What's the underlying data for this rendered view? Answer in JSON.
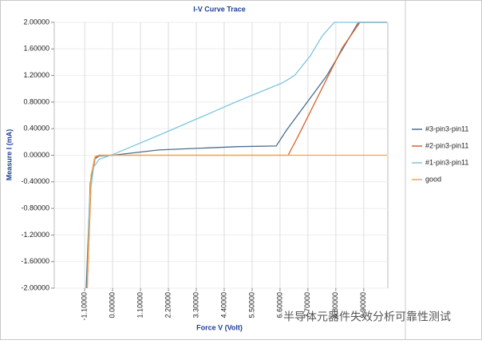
{
  "chart_data": {
    "type": "line",
    "title": "I-V Curve Trace",
    "x_label": "Force V (Volt)",
    "y_label": "Measure I (mA)",
    "xlim": [
      -2.3,
      10.85
    ],
    "ylim": [
      -2,
      2
    ],
    "xticks": [
      {
        "value": -1.1,
        "label": "-1.10000"
      },
      {
        "value": 0,
        "label": "0.00000"
      },
      {
        "value": 1.1,
        "label": "1.10000"
      },
      {
        "value": 2.2,
        "label": "2.20000"
      },
      {
        "value": 3.3,
        "label": "3.30000"
      },
      {
        "value": 4.4,
        "label": "4.40000"
      },
      {
        "value": 5.5,
        "label": "5.50000"
      },
      {
        "value": 6.6,
        "label": "6.60000"
      },
      {
        "value": 7.7,
        "label": "7.70000"
      },
      {
        "value": 8.8,
        "label": "8.80000"
      },
      {
        "value": 9.9,
        "label": "9.90000"
      }
    ],
    "yticks": [
      {
        "value": 2,
        "label": "2.00000"
      },
      {
        "value": 1.6,
        "label": "1.60000"
      },
      {
        "value": 1.2,
        "label": "1.20000"
      },
      {
        "value": 0.8,
        "label": "0.80000"
      },
      {
        "value": 0.4,
        "label": "0.40000"
      },
      {
        "value": 0,
        "label": "0.00000"
      },
      {
        "value": -0.4,
        "label": "-0.40000"
      },
      {
        "value": -0.8,
        "label": "-0.80000"
      },
      {
        "value": -1.2,
        "label": "-1.20000"
      },
      {
        "value": -1.6,
        "label": "-1.60000"
      },
      {
        "value": -2,
        "label": "-2.00000"
      }
    ],
    "grid": true,
    "legend": "right",
    "series": [
      {
        "name": "#3-pin3-pin11",
        "color": "#4d6e8e",
        "x": [
          -1.04,
          -0.88,
          -0.72,
          -0.53,
          0,
          1.82,
          4.97,
          6.45,
          6.86,
          8.43,
          9.69,
          10.82
        ],
        "values": [
          -2,
          -0.42,
          -0.06,
          -0.01,
          0,
          0.08,
          0.13,
          0.14,
          0.38,
          1.19,
          2,
          2
        ]
      },
      {
        "name": "#2-pin3-pin11",
        "color": "#d9622b",
        "x": [
          -1.0,
          -0.85,
          -0.69,
          -0.53,
          6.92,
          7.33,
          8.43,
          9.06,
          9.75,
          10.82
        ],
        "values": [
          -2,
          -0.42,
          -0.04,
          0,
          0,
          0.3,
          1.14,
          1.62,
          2,
          2
        ]
      },
      {
        "name": "#1-pin3-pin11",
        "color": "#7cc6df",
        "x": [
          -1.0,
          -0.91,
          -0.75,
          -0.53,
          0,
          1.82,
          3.4,
          4.97,
          6.7,
          7.17,
          7.8,
          8.27,
          8.74,
          10.82
        ],
        "values": [
          -2,
          -0.66,
          -0.18,
          -0.06,
          0.01,
          0.3,
          0.56,
          0.82,
          1.09,
          1.2,
          1.5,
          1.8,
          2,
          2
        ]
      },
      {
        "name": "good",
        "color": "#f5a442",
        "x": [
          -1.0,
          -0.85,
          -0.69,
          -0.53,
          10.82
        ],
        "values": [
          -2,
          -0.3,
          -0.02,
          0,
          0
        ]
      }
    ],
    "annotation": "半导体元器件失效分析可靠性测试"
  }
}
